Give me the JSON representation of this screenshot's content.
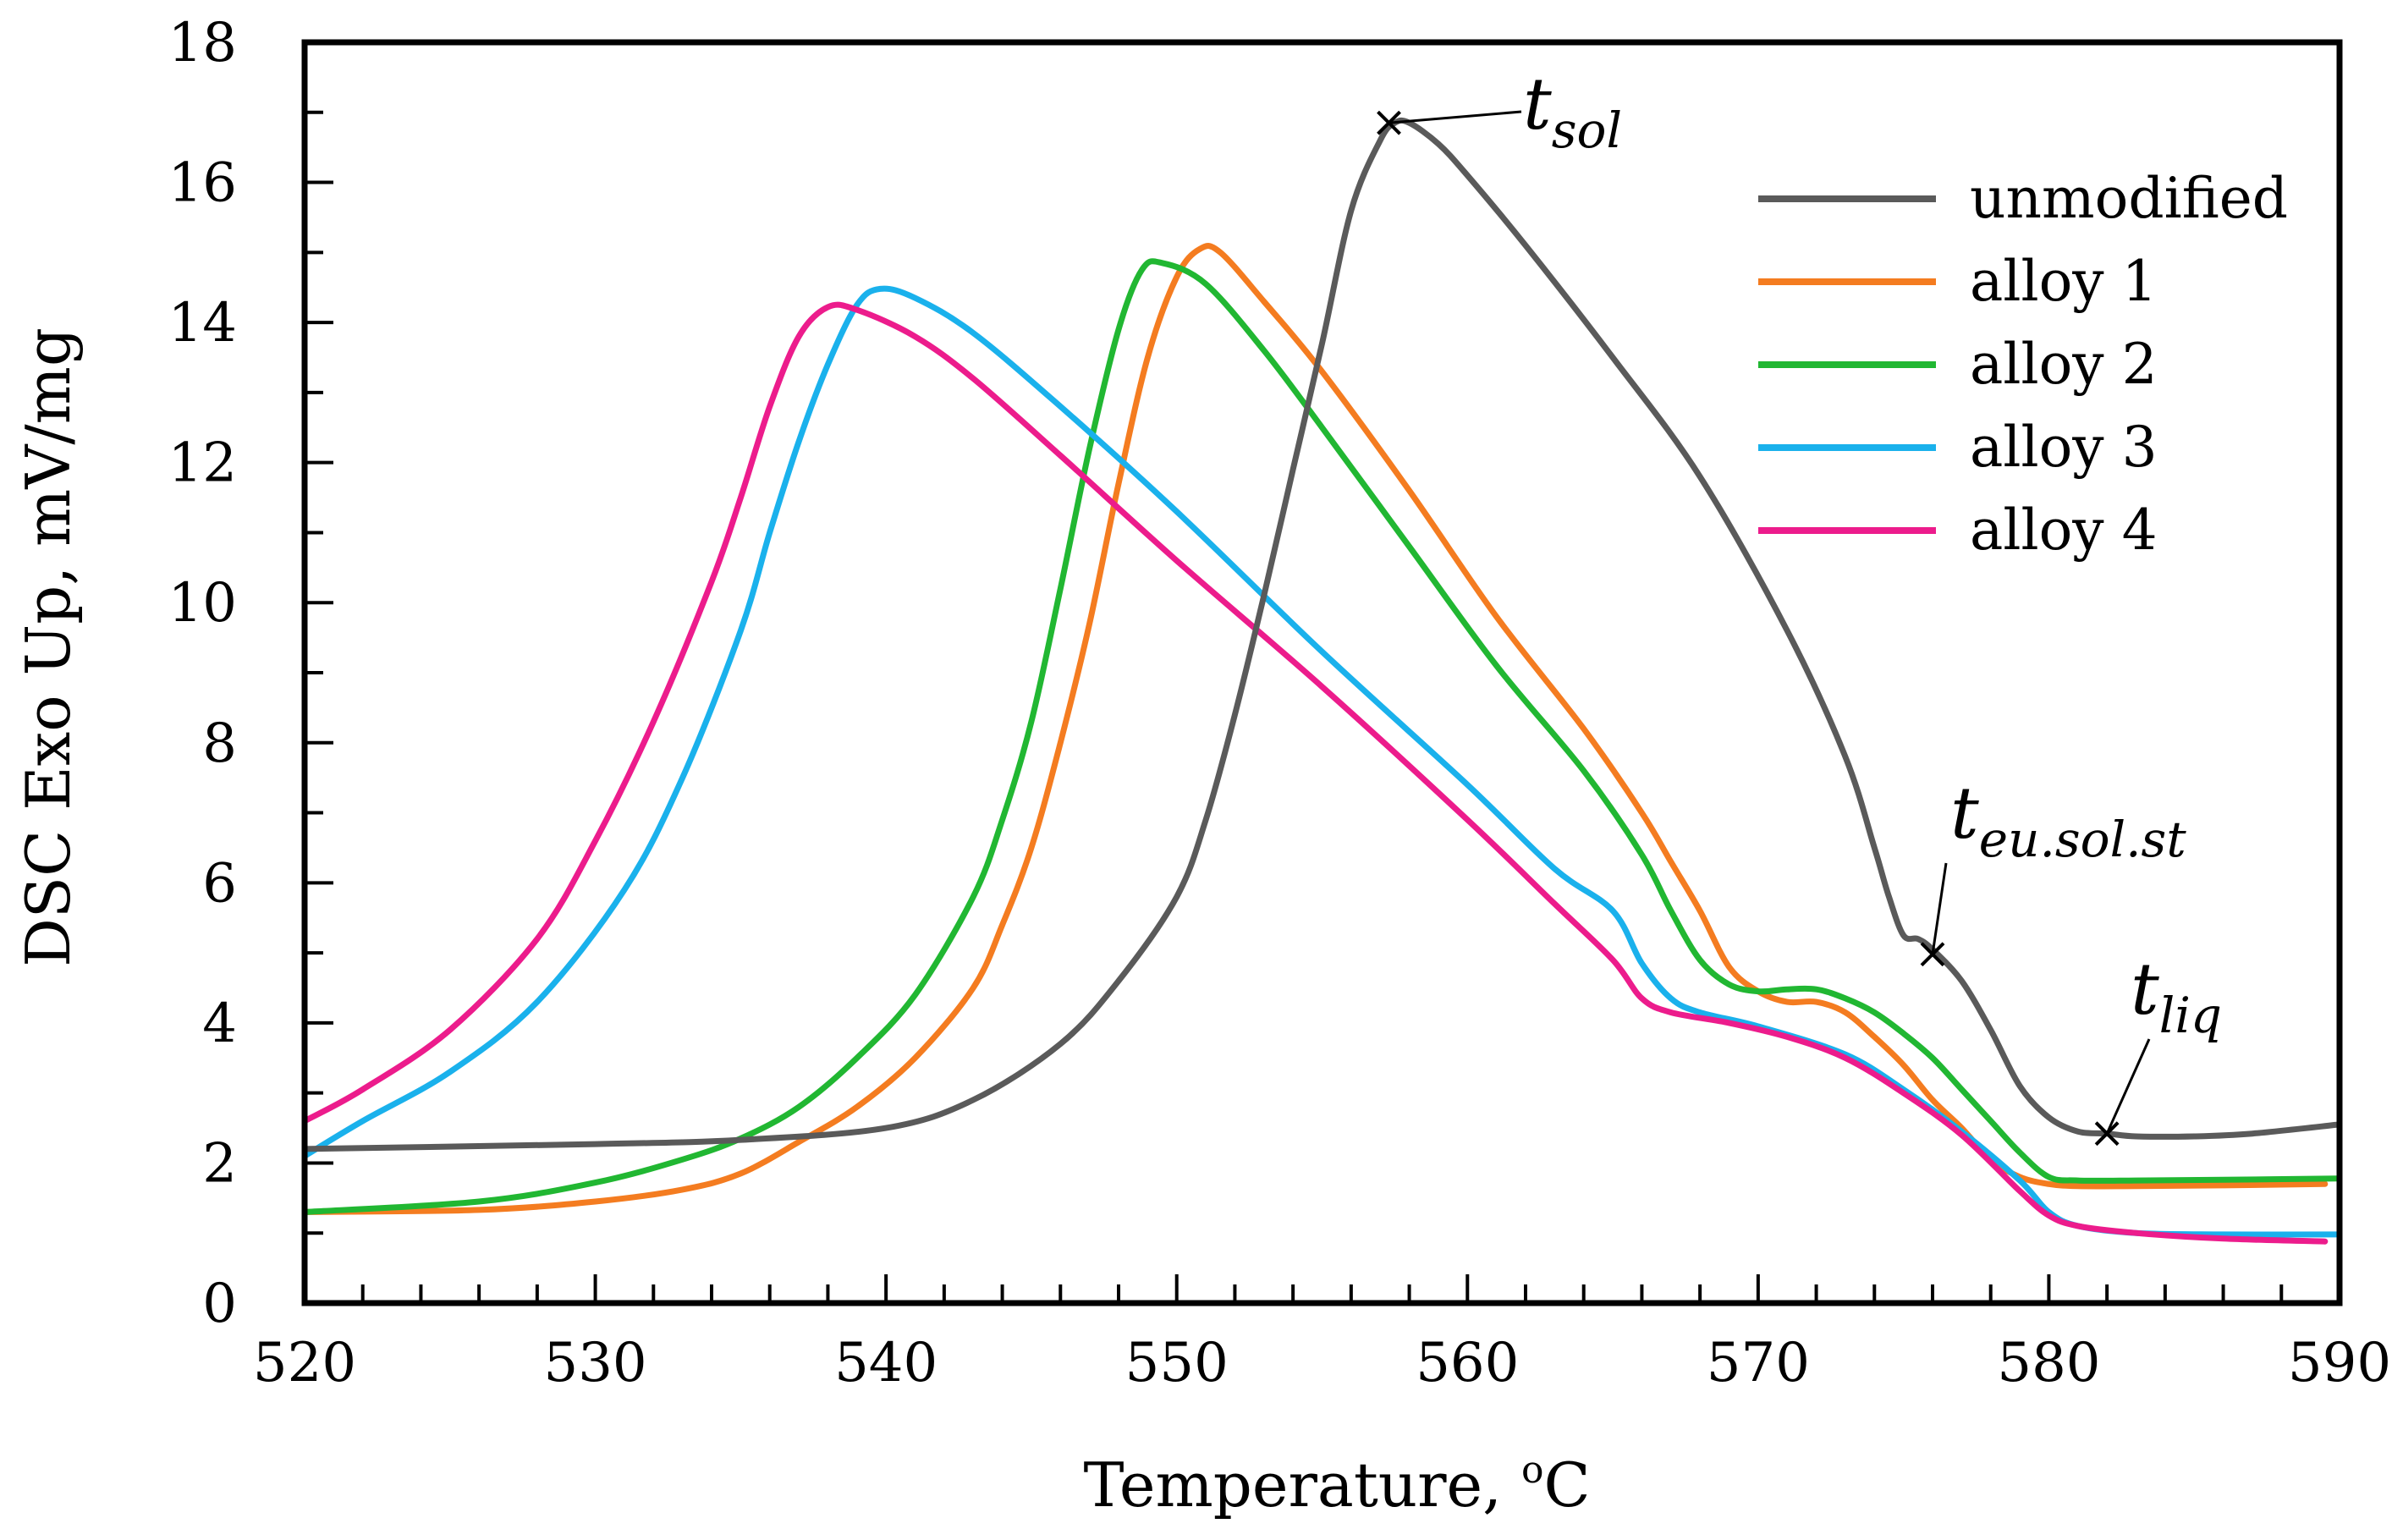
{
  "chart_data": {
    "type": "line",
    "title": "",
    "xlabel": "Temperature, ",
    "xlabel_unit": "°C",
    "xlabel_degree": "o",
    "xlabel_unit_letter": "C",
    "ylabel": "DSC  Exo Up, mV/mg",
    "xlim": [
      520,
      590
    ],
    "ylim": [
      0,
      18
    ],
    "x_ticks": [
      520,
      530,
      540,
      550,
      560,
      570,
      580,
      590
    ],
    "y_ticks": [
      0,
      2,
      4,
      6,
      8,
      10,
      12,
      14,
      16,
      18
    ],
    "x_minor_step": 2,
    "y_minor_step": 1,
    "grid": false,
    "legend_position": "top-right",
    "series": [
      {
        "name": "unmodified",
        "color": "#5a5a5a",
        "points": [
          [
            520,
            2.2
          ],
          [
            530,
            2.27
          ],
          [
            535,
            2.33
          ],
          [
            540,
            2.5
          ],
          [
            543,
            2.9
          ],
          [
            546,
            3.7
          ],
          [
            548,
            4.6
          ],
          [
            550,
            5.8
          ],
          [
            551,
            6.9
          ],
          [
            552,
            8.4
          ],
          [
            553,
            10.1
          ],
          [
            554,
            11.9
          ],
          [
            555,
            13.7
          ],
          [
            556,
            15.6
          ],
          [
            557,
            16.6
          ],
          [
            557.5,
            16.85
          ],
          [
            558,
            16.85
          ],
          [
            559,
            16.55
          ],
          [
            560,
            16.1
          ],
          [
            562,
            15.1
          ],
          [
            565,
            13.5
          ],
          [
            568,
            11.8
          ],
          [
            571,
            9.6
          ],
          [
            573,
            7.8
          ],
          [
            574,
            6.5
          ],
          [
            574.5,
            5.8
          ],
          [
            575,
            5.25
          ],
          [
            575.5,
            5.2
          ],
          [
            576,
            5.05
          ],
          [
            577,
            4.6
          ],
          [
            578,
            3.9
          ],
          [
            579,
            3.1
          ],
          [
            580,
            2.65
          ],
          [
            581,
            2.45
          ],
          [
            582,
            2.42
          ],
          [
            583,
            2.38
          ],
          [
            585,
            2.38
          ],
          [
            587,
            2.42
          ],
          [
            590,
            2.55
          ]
        ]
      },
      {
        "name": "alloy 1",
        "color": "#f47c20",
        "points": [
          [
            520,
            1.3
          ],
          [
            526,
            1.33
          ],
          [
            530,
            1.45
          ],
          [
            533,
            1.62
          ],
          [
            535,
            1.85
          ],
          [
            537,
            2.3
          ],
          [
            539,
            2.8
          ],
          [
            541,
            3.5
          ],
          [
            543,
            4.5
          ],
          [
            544,
            5.4
          ],
          [
            545,
            6.5
          ],
          [
            546,
            8.0
          ],
          [
            547,
            9.7
          ],
          [
            548,
            11.7
          ],
          [
            549,
            13.5
          ],
          [
            550,
            14.65
          ],
          [
            550.8,
            15.05
          ],
          [
            551.5,
            15.0
          ],
          [
            553,
            14.3
          ],
          [
            555,
            13.3
          ],
          [
            558,
            11.6
          ],
          [
            561,
            9.8
          ],
          [
            564,
            8.2
          ],
          [
            566,
            7.0
          ],
          [
            567,
            6.3
          ],
          [
            568,
            5.6
          ],
          [
            569,
            4.8
          ],
          [
            570,
            4.45
          ],
          [
            571,
            4.3
          ],
          [
            572,
            4.3
          ],
          [
            573,
            4.15
          ],
          [
            574,
            3.8
          ],
          [
            575,
            3.4
          ],
          [
            576,
            2.9
          ],
          [
            577,
            2.5
          ],
          [
            578,
            2.05
          ],
          [
            579,
            1.8
          ],
          [
            580,
            1.7
          ],
          [
            581,
            1.67
          ],
          [
            583,
            1.67
          ],
          [
            586,
            1.68
          ],
          [
            589.5,
            1.7
          ]
        ]
      },
      {
        "name": "alloy 2",
        "color": "#21b732",
        "points": [
          [
            520,
            1.3
          ],
          [
            526,
            1.45
          ],
          [
            530,
            1.72
          ],
          [
            533,
            2.05
          ],
          [
            535,
            2.35
          ],
          [
            537,
            2.8
          ],
          [
            539,
            3.5
          ],
          [
            541,
            4.4
          ],
          [
            543,
            5.8
          ],
          [
            544,
            6.9
          ],
          [
            545,
            8.3
          ],
          [
            546,
            10.2
          ],
          [
            547,
            12.2
          ],
          [
            548,
            13.9
          ],
          [
            548.8,
            14.75
          ],
          [
            549.5,
            14.85
          ],
          [
            551,
            14.55
          ],
          [
            553,
            13.6
          ],
          [
            555,
            12.5
          ],
          [
            558,
            10.8
          ],
          [
            561,
            9.1
          ],
          [
            564,
            7.6
          ],
          [
            566,
            6.4
          ],
          [
            567,
            5.6
          ],
          [
            568,
            4.9
          ],
          [
            569,
            4.55
          ],
          [
            570,
            4.45
          ],
          [
            571,
            4.48
          ],
          [
            572,
            4.48
          ],
          [
            573,
            4.35
          ],
          [
            574,
            4.15
          ],
          [
            575,
            3.85
          ],
          [
            576,
            3.5
          ],
          [
            577,
            3.05
          ],
          [
            578,
            2.6
          ],
          [
            579,
            2.15
          ],
          [
            580,
            1.8
          ],
          [
            581,
            1.75
          ],
          [
            583,
            1.75
          ],
          [
            586,
            1.76
          ],
          [
            590,
            1.78
          ]
        ]
      },
      {
        "name": "alloy 3",
        "color": "#1ab1ec",
        "points": [
          [
            520,
            2.1
          ],
          [
            522,
            2.6
          ],
          [
            525,
            3.3
          ],
          [
            528,
            4.3
          ],
          [
            531,
            5.9
          ],
          [
            533,
            7.5
          ],
          [
            535,
            9.6
          ],
          [
            536,
            11.0
          ],
          [
            537,
            12.3
          ],
          [
            538,
            13.4
          ],
          [
            539,
            14.25
          ],
          [
            539.8,
            14.48
          ],
          [
            541,
            14.35
          ],
          [
            543,
            13.85
          ],
          [
            546,
            12.8
          ],
          [
            550,
            11.3
          ],
          [
            555,
            9.3
          ],
          [
            560,
            7.4
          ],
          [
            563,
            6.2
          ],
          [
            565,
            5.6
          ],
          [
            566,
            4.85
          ],
          [
            567,
            4.35
          ],
          [
            568,
            4.15
          ],
          [
            570,
            3.95
          ],
          [
            573,
            3.55
          ],
          [
            575,
            3.05
          ],
          [
            577,
            2.45
          ],
          [
            579,
            1.75
          ],
          [
            580,
            1.3
          ],
          [
            581,
            1.1
          ],
          [
            583,
            1.0
          ],
          [
            586,
            0.98
          ],
          [
            590,
            0.98
          ]
        ]
      },
      {
        "name": "alloy 4",
        "color": "#ec1c8c",
        "points": [
          [
            520,
            2.6
          ],
          [
            522,
            3.05
          ],
          [
            525,
            3.9
          ],
          [
            528,
            5.2
          ],
          [
            530,
            6.6
          ],
          [
            532,
            8.3
          ],
          [
            534,
            10.3
          ],
          [
            535,
            11.5
          ],
          [
            536,
            12.8
          ],
          [
            537,
            13.8
          ],
          [
            538,
            14.22
          ],
          [
            539,
            14.18
          ],
          [
            541,
            13.8
          ],
          [
            543,
            13.2
          ],
          [
            546,
            12.1
          ],
          [
            550,
            10.6
          ],
          [
            555,
            8.8
          ],
          [
            560,
            6.9
          ],
          [
            563,
            5.7
          ],
          [
            565,
            4.9
          ],
          [
            566,
            4.35
          ],
          [
            567,
            4.15
          ],
          [
            569,
            4.0
          ],
          [
            571,
            3.8
          ],
          [
            573,
            3.5
          ],
          [
            575,
            3.0
          ],
          [
            577,
            2.4
          ],
          [
            579,
            1.6
          ],
          [
            580,
            1.25
          ],
          [
            581,
            1.1
          ],
          [
            583,
            1.0
          ],
          [
            586,
            0.92
          ],
          [
            589.5,
            0.88
          ]
        ]
      }
    ],
    "annotations": [
      {
        "id": "t_sol",
        "base": "t",
        "sub": "sol",
        "x": 557.3,
        "y": 16.85
      },
      {
        "id": "t_eu",
        "base": "t",
        "sub": "eu.sol.st",
        "x": 576.0,
        "y": 4.98
      },
      {
        "id": "t_liq",
        "base": "t",
        "sub": "liq",
        "x": 582.0,
        "y": 2.42
      }
    ]
  }
}
